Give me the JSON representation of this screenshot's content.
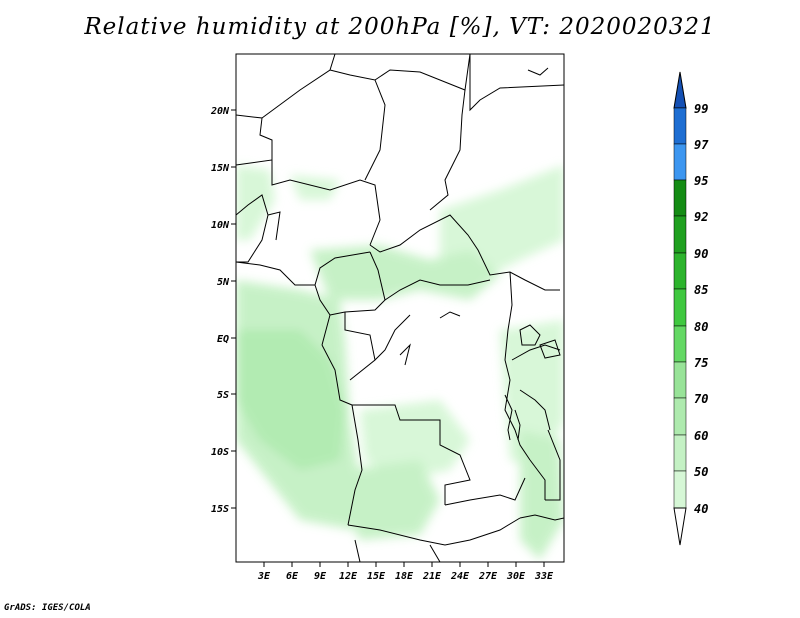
{
  "title": "Relative humidity at 200hPa [%], VT: 2020020321",
  "credit": "GrADS: IGES/COLA",
  "map": {
    "lat_labels": [
      "20N",
      "15N",
      "10N",
      "5N",
      "EQ",
      "5S",
      "10S",
      "15S"
    ],
    "lon_labels": [
      "3E",
      "6E",
      "9E",
      "12E",
      "15E",
      "18E",
      "21E",
      "24E",
      "27E",
      "30E",
      "33E"
    ]
  },
  "colorbar": {
    "levels": [
      "99",
      "97",
      "95",
      "92",
      "90",
      "85",
      "80",
      "75",
      "70",
      "60",
      "50",
      "40"
    ],
    "colors": {
      "40": "#f0fff0",
      "50": "#d6f7d6",
      "60": "#c4f1c4",
      "70": "#aeeaae",
      "75": "#98e398",
      "80": "#64d864",
      "85": "#40c840",
      "90": "#2db42d",
      "92": "#1fa01f",
      "95": "#148c14",
      "97": "#3c96f0",
      "99": "#1e6ed2",
      "above_99": "#1450b4"
    }
  },
  "chart_data": {
    "type": "heatmap",
    "title": "Relative humidity at 200hPa [%], VT: 2020020321",
    "variable": "Relative humidity",
    "level": "200hPa",
    "units": "%",
    "valid_time": "2020020321",
    "xlim": [
      0,
      35
    ],
    "ylim": [
      -20,
      25
    ],
    "contour_levels": [
      40,
      50,
      60,
      70,
      75,
      80,
      85,
      90,
      92,
      95,
      97,
      99
    ],
    "grid": false,
    "legend_placement": "right"
  }
}
